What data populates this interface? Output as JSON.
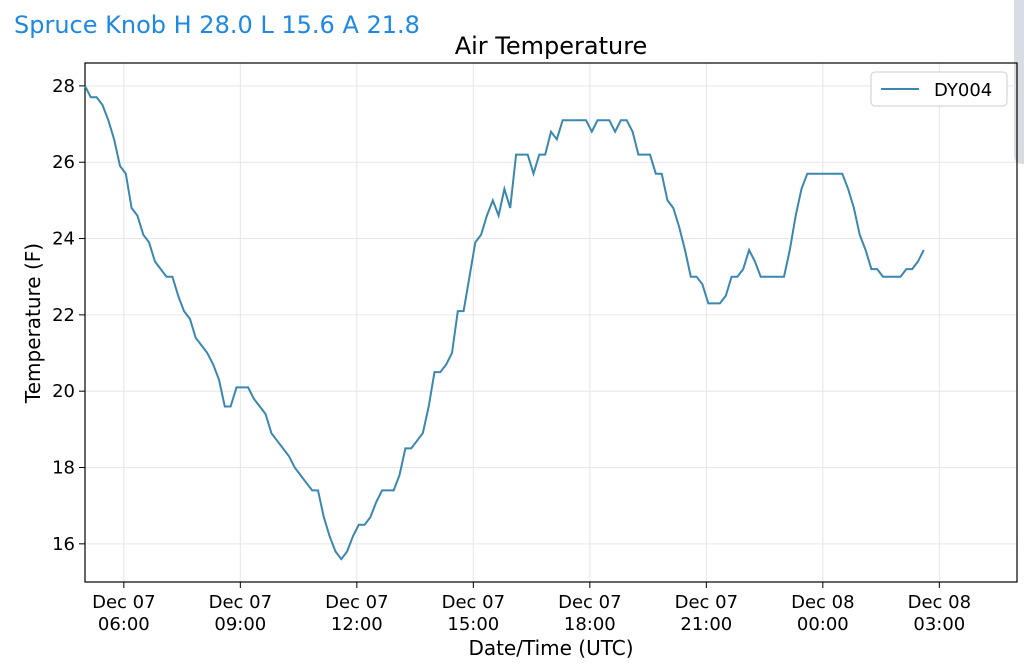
{
  "header": {
    "title": "Spruce Knob H 28.0 L 15.6 A 21.8"
  },
  "colors": {
    "header": "#1e88e5",
    "series": "#3a87b0",
    "grid": "#e6e6e6"
  },
  "chart_data": {
    "type": "line",
    "title": "Air Temperature",
    "xlabel": "Date/Time (UTC)",
    "ylabel": "Temperature (F)",
    "x_unit": "hours (UTC, Dec 07)",
    "xlim": [
      5.0,
      29.0
    ],
    "ylim": [
      15.0,
      28.6
    ],
    "grid": true,
    "legend_placement": "top-right",
    "x_ticks": [
      {
        "x": 6,
        "line1": "Dec 07",
        "line2": "06:00"
      },
      {
        "x": 9,
        "line1": "Dec 07",
        "line2": "09:00"
      },
      {
        "x": 12,
        "line1": "Dec 07",
        "line2": "12:00"
      },
      {
        "x": 15,
        "line1": "Dec 07",
        "line2": "15:00"
      },
      {
        "x": 18,
        "line1": "Dec 07",
        "line2": "18:00"
      },
      {
        "x": 21,
        "line1": "Dec 07",
        "line2": "21:00"
      },
      {
        "x": 24,
        "line1": "Dec 08",
        "line2": "00:00"
      },
      {
        "x": 27,
        "line1": "Dec 08",
        "line2": "03:00"
      }
    ],
    "y_ticks": [
      16,
      18,
      20,
      22,
      24,
      26,
      28
    ],
    "series": [
      {
        "name": "DY004",
        "points": [
          [
            5.0,
            28.0
          ],
          [
            5.15,
            27.7
          ],
          [
            5.3,
            27.7
          ],
          [
            5.45,
            27.5
          ],
          [
            5.6,
            27.1
          ],
          [
            5.75,
            26.6
          ],
          [
            5.9,
            25.9
          ],
          [
            6.05,
            25.7
          ],
          [
            6.2,
            24.8
          ],
          [
            6.35,
            24.6
          ],
          [
            6.5,
            24.1
          ],
          [
            6.65,
            23.9
          ],
          [
            6.8,
            23.4
          ],
          [
            6.95,
            23.2
          ],
          [
            7.1,
            23.0
          ],
          [
            7.25,
            23.0
          ],
          [
            7.4,
            22.5
          ],
          [
            7.55,
            22.1
          ],
          [
            7.7,
            21.9
          ],
          [
            7.85,
            21.4
          ],
          [
            8.0,
            21.2
          ],
          [
            8.15,
            21.0
          ],
          [
            8.3,
            20.7
          ],
          [
            8.45,
            20.3
          ],
          [
            8.6,
            19.6
          ],
          [
            8.75,
            19.6
          ],
          [
            8.9,
            20.1
          ],
          [
            9.05,
            20.1
          ],
          [
            9.2,
            20.1
          ],
          [
            9.35,
            19.8
          ],
          [
            9.5,
            19.6
          ],
          [
            9.65,
            19.4
          ],
          [
            9.8,
            18.9
          ],
          [
            9.95,
            18.7
          ],
          [
            10.1,
            18.5
          ],
          [
            10.25,
            18.3
          ],
          [
            10.4,
            18.0
          ],
          [
            10.55,
            17.8
          ],
          [
            10.7,
            17.6
          ],
          [
            10.85,
            17.4
          ],
          [
            11.0,
            17.4
          ],
          [
            11.15,
            16.7
          ],
          [
            11.3,
            16.2
          ],
          [
            11.45,
            15.8
          ],
          [
            11.6,
            15.6
          ],
          [
            11.75,
            15.8
          ],
          [
            11.9,
            16.2
          ],
          [
            12.05,
            16.5
          ],
          [
            12.2,
            16.5
          ],
          [
            12.35,
            16.7
          ],
          [
            12.5,
            17.1
          ],
          [
            12.65,
            17.4
          ],
          [
            12.8,
            17.4
          ],
          [
            12.95,
            17.4
          ],
          [
            13.1,
            17.8
          ],
          [
            13.25,
            18.5
          ],
          [
            13.4,
            18.5
          ],
          [
            13.55,
            18.7
          ],
          [
            13.7,
            18.9
          ],
          [
            13.85,
            19.6
          ],
          [
            14.0,
            20.5
          ],
          [
            14.15,
            20.5
          ],
          [
            14.3,
            20.7
          ],
          [
            14.45,
            21.0
          ],
          [
            14.6,
            22.1
          ],
          [
            14.75,
            22.1
          ],
          [
            14.9,
            23.0
          ],
          [
            15.05,
            23.9
          ],
          [
            15.2,
            24.1
          ],
          [
            15.35,
            24.6
          ],
          [
            15.5,
            25.0
          ],
          [
            15.65,
            24.6
          ],
          [
            15.8,
            25.3
          ],
          [
            15.95,
            24.8
          ],
          [
            16.1,
            26.2
          ],
          [
            16.25,
            26.2
          ],
          [
            16.4,
            26.2
          ],
          [
            16.55,
            25.7
          ],
          [
            16.7,
            26.2
          ],
          [
            16.85,
            26.2
          ],
          [
            17.0,
            26.8
          ],
          [
            17.15,
            26.6
          ],
          [
            17.3,
            27.1
          ],
          [
            17.45,
            27.1
          ],
          [
            17.6,
            27.1
          ],
          [
            17.75,
            27.1
          ],
          [
            17.9,
            27.1
          ],
          [
            18.05,
            26.8
          ],
          [
            18.2,
            27.1
          ],
          [
            18.35,
            27.1
          ],
          [
            18.5,
            27.1
          ],
          [
            18.65,
            26.8
          ],
          [
            18.8,
            27.1
          ],
          [
            18.95,
            27.1
          ],
          [
            19.1,
            26.8
          ],
          [
            19.25,
            26.2
          ],
          [
            19.4,
            26.2
          ],
          [
            19.55,
            26.2
          ],
          [
            19.7,
            25.7
          ],
          [
            19.85,
            25.7
          ],
          [
            20.0,
            25.0
          ],
          [
            20.15,
            24.8
          ],
          [
            20.3,
            24.3
          ],
          [
            20.45,
            23.7
          ],
          [
            20.6,
            23.0
          ],
          [
            20.75,
            23.0
          ],
          [
            20.9,
            22.8
          ],
          [
            21.05,
            22.3
          ],
          [
            21.2,
            22.3
          ],
          [
            21.35,
            22.3
          ],
          [
            21.5,
            22.5
          ],
          [
            21.65,
            23.0
          ],
          [
            21.8,
            23.0
          ],
          [
            21.95,
            23.2
          ],
          [
            22.1,
            23.7
          ],
          [
            22.25,
            23.4
          ],
          [
            22.4,
            23.0
          ],
          [
            22.55,
            23.0
          ],
          [
            22.7,
            23.0
          ],
          [
            22.85,
            23.0
          ],
          [
            23.0,
            23.0
          ],
          [
            23.15,
            23.7
          ],
          [
            23.3,
            24.6
          ],
          [
            23.45,
            25.3
          ],
          [
            23.6,
            25.7
          ],
          [
            23.75,
            25.7
          ],
          [
            23.9,
            25.7
          ],
          [
            24.05,
            25.7
          ],
          [
            24.2,
            25.7
          ],
          [
            24.35,
            25.7
          ],
          [
            24.5,
            25.7
          ],
          [
            24.65,
            25.3
          ],
          [
            24.8,
            24.8
          ],
          [
            24.95,
            24.1
          ],
          [
            25.1,
            23.7
          ],
          [
            25.25,
            23.2
          ],
          [
            25.4,
            23.2
          ],
          [
            25.55,
            23.0
          ],
          [
            25.7,
            23.0
          ],
          [
            25.85,
            23.0
          ],
          [
            26.0,
            23.0
          ],
          [
            26.15,
            23.2
          ],
          [
            26.3,
            23.2
          ],
          [
            26.45,
            23.4
          ],
          [
            26.6,
            23.7
          ]
        ]
      }
    ]
  }
}
